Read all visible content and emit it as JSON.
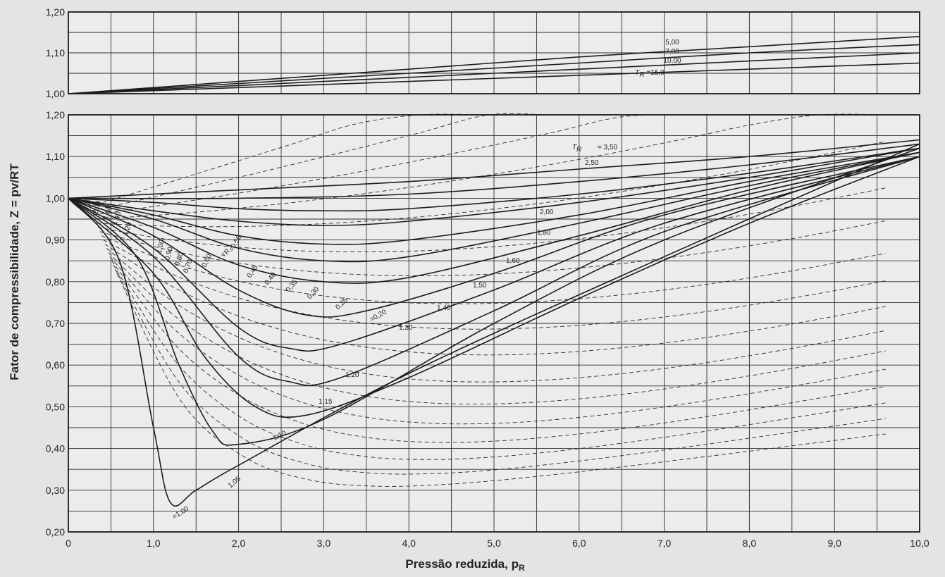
{
  "chart_data": {
    "type": "line",
    "xlabel": "Pressão reduzida, p",
    "xlabel_sub": "R",
    "ylabel": "Fator de compressibilidade, Z = pv/RT",
    "xlim": [
      0,
      10
    ],
    "grid": true,
    "x_ticks": [
      "0",
      "1,0",
      "2,0",
      "3,0",
      "4,0",
      "5,0",
      "6,0",
      "7,0",
      "8,0",
      "9,0",
      "10,0"
    ],
    "top_panel": {
      "ylim": [
        1.0,
        1.2
      ],
      "y_ticks": [
        "1,00",
        "1,10",
        "1,20"
      ],
      "curve_labels": [
        "5,00",
        "7,00",
        "10,00",
        "T",
        "R",
        "=15,0"
      ],
      "series": [
        {
          "label": "5,00",
          "x": [
            0,
            2,
            4,
            6,
            8,
            10
          ],
          "y": [
            1.0,
            1.03,
            1.06,
            1.09,
            1.115,
            1.14
          ]
        },
        {
          "label": "7,00",
          "x": [
            0,
            2,
            4,
            6,
            8,
            10
          ],
          "y": [
            1.0,
            1.025,
            1.05,
            1.075,
            1.1,
            1.12
          ]
        },
        {
          "label": "10,00",
          "x": [
            0,
            2,
            4,
            6,
            8,
            10
          ],
          "y": [
            1.0,
            1.02,
            1.04,
            1.06,
            1.08,
            1.1
          ]
        },
        {
          "label": "15,0",
          "x": [
            0,
            2,
            4,
            6,
            8,
            10
          ],
          "y": [
            1.0,
            1.015,
            1.03,
            1.045,
            1.06,
            1.075
          ]
        }
      ]
    },
    "bottom_panel": {
      "ylim": [
        0.2,
        1.2
      ],
      "y_ticks": [
        "0,20",
        "0,30",
        "0,40",
        "0,50",
        "0,60",
        "0,70",
        "0,80",
        "0,90",
        "1,00",
        "1,10",
        "1,20"
      ],
      "tr_series": [
        {
          "label": "3,50",
          "x": [
            0,
            2,
            4,
            6,
            8,
            10
          ],
          "y": [
            1.0,
            1.02,
            1.04,
            1.07,
            1.1,
            1.14
          ]
        },
        {
          "label": "2,50",
          "x": [
            0,
            2,
            4,
            6,
            8,
            10
          ],
          "y": [
            1.0,
            1.0,
            1.01,
            1.04,
            1.08,
            1.13
          ]
        },
        {
          "label": "2,00",
          "x": [
            0,
            1,
            2,
            3,
            4,
            6,
            8,
            10
          ],
          "y": [
            1.0,
            0.99,
            0.975,
            0.97,
            0.975,
            1.01,
            1.06,
            1.12
          ]
        },
        {
          "label": "1,80",
          "x": [
            0,
            1,
            2,
            3,
            4,
            6,
            8,
            10
          ],
          "y": [
            1.0,
            0.97,
            0.945,
            0.935,
            0.945,
            0.99,
            1.05,
            1.12
          ]
        },
        {
          "label": "1,60",
          "x": [
            0,
            1,
            2,
            3,
            4,
            6,
            8,
            10
          ],
          "y": [
            1.0,
            0.96,
            0.91,
            0.89,
            0.9,
            0.96,
            1.04,
            1.11
          ]
        },
        {
          "label": "1,50",
          "x": [
            0,
            1,
            2,
            3,
            4,
            6,
            8,
            10
          ],
          "y": [
            1.0,
            0.95,
            0.88,
            0.85,
            0.86,
            0.94,
            1.03,
            1.11
          ]
        },
        {
          "label": "1,40",
          "x": [
            0,
            1,
            2,
            3,
            4,
            6,
            8,
            10
          ],
          "y": [
            1.0,
            0.93,
            0.84,
            0.8,
            0.81,
            0.91,
            1.02,
            1.11
          ]
        },
        {
          "label": "1,30",
          "x": [
            0,
            1,
            2,
            2.8,
            3.5,
            5,
            7,
            10
          ],
          "y": [
            1.0,
            0.91,
            0.78,
            0.72,
            0.73,
            0.82,
            0.96,
            1.1
          ]
        },
        {
          "label": "1,20",
          "x": [
            0,
            1,
            2,
            2.6,
            3.2,
            5,
            7,
            10
          ],
          "y": [
            1.0,
            0.88,
            0.69,
            0.64,
            0.65,
            0.78,
            0.94,
            1.1
          ]
        },
        {
          "label": "1,15",
          "x": [
            0,
            1,
            2,
            2.6,
            3.2,
            5,
            7,
            10
          ],
          "y": [
            1.0,
            0.86,
            0.62,
            0.56,
            0.57,
            0.73,
            0.92,
            1.1
          ]
        },
        {
          "label": "1,10",
          "x": [
            0,
            1,
            1.6,
            2.2,
            2.8,
            4,
            6,
            8,
            10
          ],
          "y": [
            1.0,
            0.82,
            0.62,
            0.5,
            0.48,
            0.57,
            0.76,
            0.94,
            1.1
          ]
        },
        {
          "label": "1,05",
          "x": [
            0,
            0.8,
            1.3,
            1.7,
            2.0,
            3,
            5,
            7,
            10
          ],
          "y": [
            1.0,
            0.86,
            0.6,
            0.44,
            0.41,
            0.47,
            0.7,
            0.9,
            1.12
          ]
        },
        {
          "label": "1,00",
          "x": [
            0,
            0.6,
            1.0,
            1.2,
            1.5,
            2,
            4,
            7,
            10
          ],
          "y": [
            1.0,
            0.85,
            0.45,
            0.27,
            0.3,
            0.36,
            0.58,
            0.86,
            1.13
          ]
        }
      ],
      "tr_labels": [
        "T",
        "R",
        "= 3,50",
        "2,50",
        "2,00",
        "1,80",
        "1,60",
        "1,50",
        "1,40",
        "1,30",
        "1,20",
        "1,15",
        "1,10",
        "1,05",
        "=1,00"
      ],
      "vr_labels": [
        "3,00",
        "2,00",
        "1,60",
        "1,40",
        "1,20",
        "1,00",
        "0,90",
        "0,80",
        "0,70",
        "0,60",
        "v",
        "R",
        "=0,50",
        "0,45",
        "0,40",
        "0,35",
        "0,30",
        "0,25",
        "=0,20"
      ]
    }
  }
}
